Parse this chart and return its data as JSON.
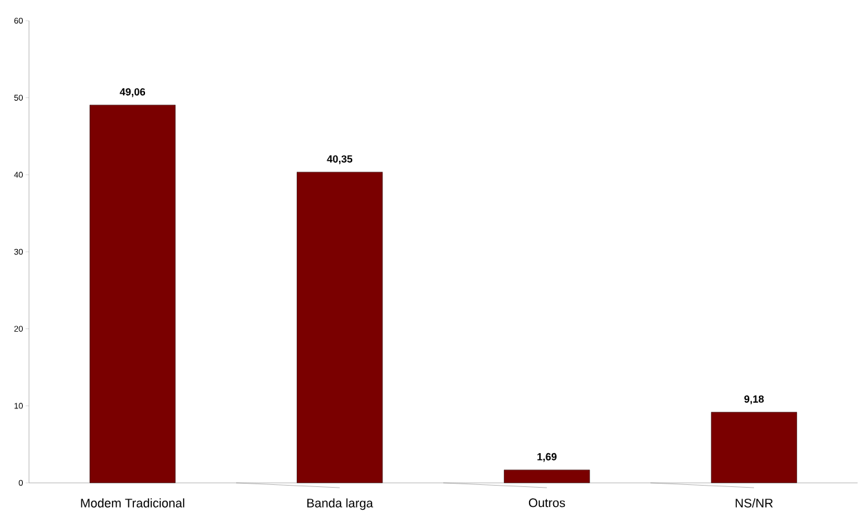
{
  "chart_data": {
    "type": "bar",
    "categories": [
      "Modem Tradicional",
      "Banda larga",
      "Outros",
      "NS/NR"
    ],
    "values": [
      49.06,
      40.35,
      1.69,
      9.18
    ],
    "value_labels": [
      "49,06",
      "40,35",
      "1,69",
      "9,18"
    ],
    "color": "#7a0000",
    "ylim": [
      0,
      60
    ],
    "yticks": [
      0,
      10,
      20,
      30,
      40,
      50,
      60
    ],
    "grid": false
  }
}
